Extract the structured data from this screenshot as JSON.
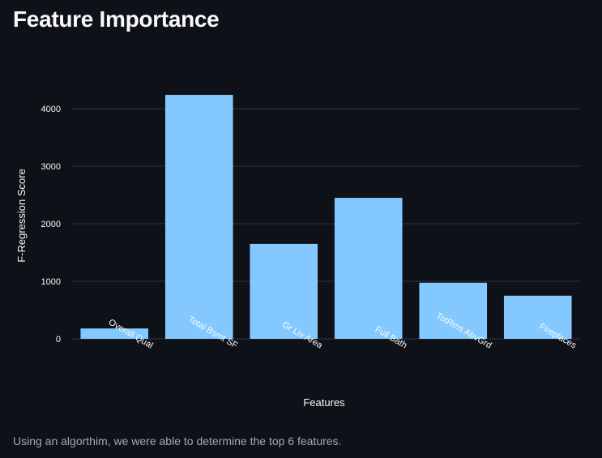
{
  "page": {
    "title": "Feature Importance",
    "caption": "Using an algorthim, we were able to determine the top 6 features."
  },
  "chart_data": {
    "type": "bar",
    "categories": [
      "Overall Qual",
      "Total Bsmt SF",
      "Gr Liv Area",
      "Full Bath",
      "TotRms AbvGrd",
      "Fireplaces"
    ],
    "values": [
      180,
      4240,
      1650,
      2450,
      975,
      750
    ],
    "xlabel": "Features",
    "ylabel": "F-Regression Score",
    "ylim": [
      0,
      4480
    ],
    "yticks": [
      0,
      1000,
      2000,
      3000,
      4000
    ],
    "grid": true,
    "bar_color": "#83c9ff",
    "grid_color": "#31333f",
    "text_color": "#fafafa"
  }
}
